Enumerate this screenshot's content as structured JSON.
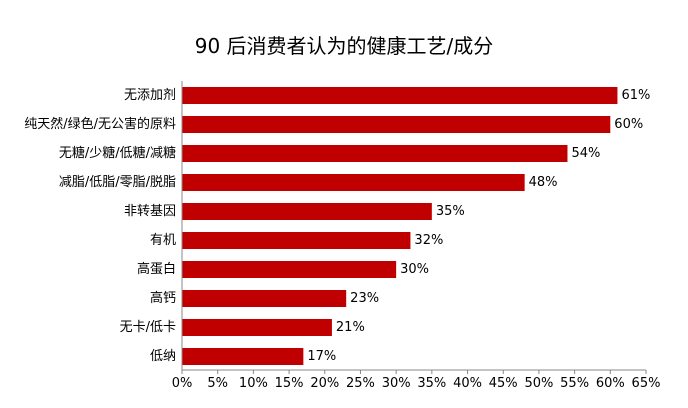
{
  "chart_data": {
    "type": "bar",
    "orientation": "horizontal",
    "title": "90 后消费者认为的健康工艺/成分",
    "xlabel": "",
    "ylabel": "",
    "categories": [
      "无添加剂",
      "纯天然/绿色/无公害的原料",
      "无糖/少糖/低糖/减糖",
      "减脂/低脂/零脂/脱脂",
      "非转基因",
      "有机",
      "高蛋白",
      "高钙",
      "无卡/低卡",
      "低纳"
    ],
    "values": [
      61,
      60,
      54,
      48,
      35,
      32,
      30,
      23,
      21,
      17
    ],
    "value_labels": [
      "61%",
      "60%",
      "54%",
      "48%",
      "35%",
      "32%",
      "30%",
      "23%",
      "21%",
      "17%"
    ],
    "xlim": [
      0,
      65
    ],
    "x_ticks": [
      "0%",
      "5%",
      "10%",
      "15%",
      "20%",
      "25%",
      "30%",
      "35%",
      "40%",
      "45%",
      "50%",
      "55%",
      "60%",
      "65%"
    ],
    "grid": false,
    "legend": "none",
    "bar_color": "#c00000"
  }
}
